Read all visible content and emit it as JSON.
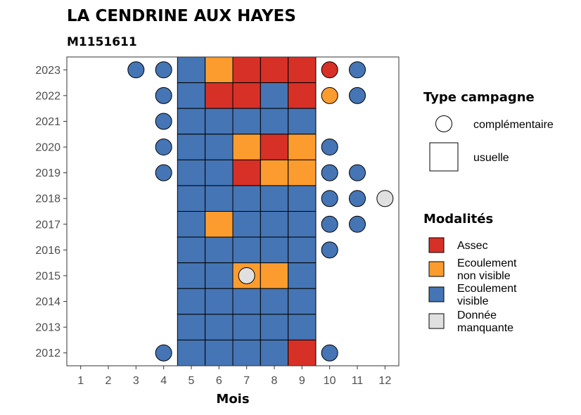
{
  "chart_data": {
    "type": "heatmap",
    "title": "LA CENDRINE AUX HAYES",
    "subtitle": "M1151611",
    "xlabel": "Mois",
    "ylabel": "",
    "x_ticks": [
      "1",
      "2",
      "3",
      "4",
      "5",
      "6",
      "7",
      "8",
      "9",
      "10",
      "11",
      "12"
    ],
    "y_ticks": [
      "2012",
      "2013",
      "2014",
      "2015",
      "2016",
      "2017",
      "2018",
      "2019",
      "2020",
      "2021",
      "2022",
      "2023"
    ],
    "xlim": [
      0.5,
      12.5
    ],
    "ylim": [
      2011.5,
      2023.5
    ],
    "grid": false,
    "legend_position": "right",
    "colors": {
      "Assec": "#d73027",
      "Ecoulement non visible": "#fd9c2e",
      "Ecoulement visible": "#4575b4",
      "Donnée manquante": "#e0e0e0"
    },
    "legend": {
      "type_campagne": {
        "title": "Type campagne",
        "items": [
          {
            "shape": "circle",
            "label": "complémentaire"
          },
          {
            "shape": "square",
            "label": "usuelle"
          }
        ]
      },
      "modalites": {
        "title": "Modalités",
        "items": [
          {
            "key": "Assec",
            "lines": [
              "Assec"
            ]
          },
          {
            "key": "Ecoulement non visible",
            "lines": [
              "Ecoulement",
              "non visible"
            ]
          },
          {
            "key": "Ecoulement visible",
            "lines": [
              "Ecoulement",
              "visible"
            ]
          },
          {
            "key": "Donnée manquante",
            "lines": [
              "Donnée",
              "manquante"
            ]
          }
        ]
      }
    },
    "usuelle": [
      {
        "year": 2023,
        "months": [
          5,
          6,
          7,
          8,
          9
        ],
        "values": [
          "Ecoulement visible",
          "Ecoulement non visible",
          "Assec",
          "Assec",
          "Assec"
        ]
      },
      {
        "year": 2022,
        "months": [
          5,
          6,
          7,
          8,
          9
        ],
        "values": [
          "Ecoulement visible",
          "Assec",
          "Assec",
          "Ecoulement visible",
          "Assec"
        ]
      },
      {
        "year": 2021,
        "months": [
          5,
          6,
          7,
          8,
          9
        ],
        "values": [
          "Ecoulement visible",
          "Ecoulement visible",
          "Ecoulement visible",
          "Ecoulement visible",
          "Ecoulement visible"
        ]
      },
      {
        "year": 2020,
        "months": [
          5,
          6,
          7,
          8,
          9
        ],
        "values": [
          "Ecoulement visible",
          "Ecoulement visible",
          "Ecoulement non visible",
          "Assec",
          "Ecoulement non visible"
        ]
      },
      {
        "year": 2019,
        "months": [
          5,
          6,
          7,
          8,
          9
        ],
        "values": [
          "Ecoulement visible",
          "Ecoulement visible",
          "Assec",
          "Ecoulement non visible",
          "Ecoulement non visible"
        ]
      },
      {
        "year": 2018,
        "months": [
          5,
          6,
          7,
          8,
          9
        ],
        "values": [
          "Ecoulement visible",
          "Ecoulement visible",
          "Ecoulement visible",
          "Ecoulement visible",
          "Ecoulement visible"
        ]
      },
      {
        "year": 2017,
        "months": [
          5,
          6,
          7,
          8,
          9
        ],
        "values": [
          "Ecoulement visible",
          "Ecoulement non visible",
          "Ecoulement visible",
          "Ecoulement visible",
          "Ecoulement visible"
        ]
      },
      {
        "year": 2016,
        "months": [
          5,
          6,
          7,
          8,
          9
        ],
        "values": [
          "Ecoulement visible",
          "Ecoulement visible",
          "Ecoulement visible",
          "Ecoulement visible",
          "Ecoulement visible"
        ]
      },
      {
        "year": 2015,
        "months": [
          5,
          6,
          7,
          8,
          9
        ],
        "values": [
          "Ecoulement visible",
          "Ecoulement visible",
          "Ecoulement non visible",
          "Ecoulement non visible",
          "Ecoulement visible"
        ]
      },
      {
        "year": 2014,
        "months": [
          5,
          6,
          7,
          8,
          9
        ],
        "values": [
          "Ecoulement visible",
          "Ecoulement visible",
          "Ecoulement visible",
          "Ecoulement visible",
          "Ecoulement visible"
        ]
      },
      {
        "year": 2013,
        "months": [
          5,
          6,
          7,
          8,
          9
        ],
        "values": [
          "Ecoulement visible",
          "Ecoulement visible",
          "Ecoulement visible",
          "Ecoulement visible",
          "Ecoulement visible"
        ]
      },
      {
        "year": 2012,
        "months": [
          5,
          6,
          7,
          8,
          9
        ],
        "values": [
          "Ecoulement visible",
          "Ecoulement visible",
          "Ecoulement visible",
          "Ecoulement visible",
          "Assec"
        ]
      }
    ],
    "complementaire": [
      {
        "year": 2023,
        "month": 3,
        "value": "Ecoulement visible"
      },
      {
        "year": 2023,
        "month": 4,
        "value": "Ecoulement visible"
      },
      {
        "year": 2023,
        "month": 10,
        "value": "Assec"
      },
      {
        "year": 2023,
        "month": 11,
        "value": "Ecoulement visible"
      },
      {
        "year": 2022,
        "month": 4,
        "value": "Ecoulement visible"
      },
      {
        "year": 2022,
        "month": 10,
        "value": "Ecoulement non visible"
      },
      {
        "year": 2022,
        "month": 11,
        "value": "Ecoulement visible"
      },
      {
        "year": 2021,
        "month": 4,
        "value": "Ecoulement visible"
      },
      {
        "year": 2020,
        "month": 4,
        "value": "Ecoulement visible"
      },
      {
        "year": 2020,
        "month": 10,
        "value": "Ecoulement visible"
      },
      {
        "year": 2019,
        "month": 4,
        "value": "Ecoulement visible"
      },
      {
        "year": 2019,
        "month": 10,
        "value": "Ecoulement visible"
      },
      {
        "year": 2019,
        "month": 11,
        "value": "Ecoulement visible"
      },
      {
        "year": 2018,
        "month": 10,
        "value": "Ecoulement visible"
      },
      {
        "year": 2018,
        "month": 11,
        "value": "Ecoulement visible"
      },
      {
        "year": 2018,
        "month": 12,
        "value": "Donnée manquante"
      },
      {
        "year": 2017,
        "month": 10,
        "value": "Ecoulement visible"
      },
      {
        "year": 2017,
        "month": 11,
        "value": "Ecoulement visible"
      },
      {
        "year": 2016,
        "month": 10,
        "value": "Ecoulement visible"
      },
      {
        "year": 2015,
        "month": 7,
        "value": "Donnée manquante"
      },
      {
        "year": 2012,
        "month": 4,
        "value": "Ecoulement visible"
      },
      {
        "year": 2012,
        "month": 10,
        "value": "Ecoulement visible"
      }
    ]
  }
}
